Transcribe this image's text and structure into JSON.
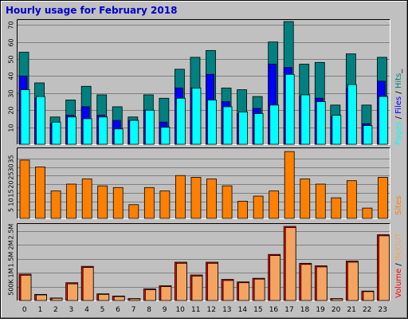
{
  "title": "Hourly usage for February 2018",
  "colors": {
    "background": "#c0c0c0",
    "pages": "#00ffff",
    "files": "#0000ff",
    "hits": "#008080",
    "sites": "#ff8000",
    "volume": "#ff0000",
    "in_out": "#f4a460"
  },
  "labels": {
    "pages": "Pages",
    "files": "Files",
    "hits": "Hits",
    "sites": "Sites",
    "volume": "Volume",
    "in_out": "IN/OUT"
  },
  "chart_data": [
    {
      "type": "bar",
      "name_key": "hits-chart",
      "categories": [
        "0",
        "1",
        "2",
        "3",
        "4",
        "5",
        "6",
        "7",
        "8",
        "9",
        "10",
        "11",
        "12",
        "13",
        "14",
        "15",
        "16",
        "17",
        "18",
        "19",
        "20",
        "21",
        "22",
        "23"
      ],
      "y_ticks": [
        "10",
        "20",
        "30",
        "40",
        "50",
        "60",
        "70"
      ],
      "ylim": [
        0,
        72
      ],
      "series": [
        {
          "name": "Hits",
          "values": [
            54,
            36,
            16,
            26,
            34,
            29,
            22,
            16,
            29,
            27,
            44,
            51,
            55,
            33,
            32,
            28,
            60,
            72,
            47,
            48,
            23,
            53,
            23,
            51
          ]
        },
        {
          "name": "Files",
          "values": [
            40,
            27,
            12,
            17,
            22,
            17,
            14,
            14,
            20,
            13,
            33,
            33,
            41,
            25,
            18,
            21,
            47,
            45,
            28,
            27,
            16,
            33,
            12,
            37
          ]
        },
        {
          "name": "Pages",
          "values": [
            32,
            28,
            13,
            16,
            15,
            16,
            9,
            14,
            20,
            10,
            27,
            33,
            26,
            22,
            19,
            18,
            23,
            41,
            29,
            25,
            17,
            35,
            11,
            28
          ]
        }
      ]
    },
    {
      "type": "bar",
      "name_key": "sites-chart",
      "categories": [
        "0",
        "1",
        "2",
        "3",
        "4",
        "5",
        "6",
        "7",
        "8",
        "9",
        "10",
        "11",
        "12",
        "13",
        "14",
        "15",
        "16",
        "17",
        "18",
        "19",
        "20",
        "21",
        "22",
        "23"
      ],
      "y_ticks": [
        "5",
        "10",
        "15",
        "20",
        "25",
        "30",
        "35"
      ],
      "ylim": [
        0,
        40
      ],
      "series": [
        {
          "name": "Sites",
          "values": [
            34,
            30,
            16,
            20,
            23,
            19,
            18,
            8,
            18,
            16,
            25,
            24,
            23,
            19,
            10,
            13,
            16,
            39,
            23,
            20,
            12,
            22,
            6,
            24
          ]
        }
      ]
    },
    {
      "type": "bar",
      "name_key": "volume-chart",
      "categories": [
        "0",
        "1",
        "2",
        "3",
        "4",
        "5",
        "6",
        "7",
        "8",
        "9",
        "10",
        "11",
        "12",
        "13",
        "14",
        "15",
        "16",
        "17",
        "18",
        "19",
        "20",
        "21",
        "22",
        "23"
      ],
      "y_ticks": [
        "500K",
        "1M",
        "1.5M",
        "2M",
        "2.5M"
      ],
      "y_tick_values": [
        500000,
        1000000,
        1500000,
        2000000,
        2500000
      ],
      "ylim": [
        0,
        2700000
      ],
      "series": [
        {
          "name": "Volume",
          "values": [
            950000,
            220000,
            90000,
            640000,
            1230000,
            240000,
            160000,
            70000,
            420000,
            530000,
            1380000,
            920000,
            1380000,
            760000,
            670000,
            800000,
            1660000,
            2670000,
            1340000,
            1250000,
            70000,
            1420000,
            340000,
            2370000
          ]
        },
        {
          "name": "IN/OUT",
          "values": [
            910000,
            200000,
            80000,
            600000,
            1190000,
            220000,
            140000,
            60000,
            390000,
            500000,
            1340000,
            880000,
            1340000,
            720000,
            640000,
            770000,
            1620000,
            2630000,
            1300000,
            1210000,
            60000,
            1380000,
            320000,
            2330000
          ]
        }
      ]
    }
  ]
}
